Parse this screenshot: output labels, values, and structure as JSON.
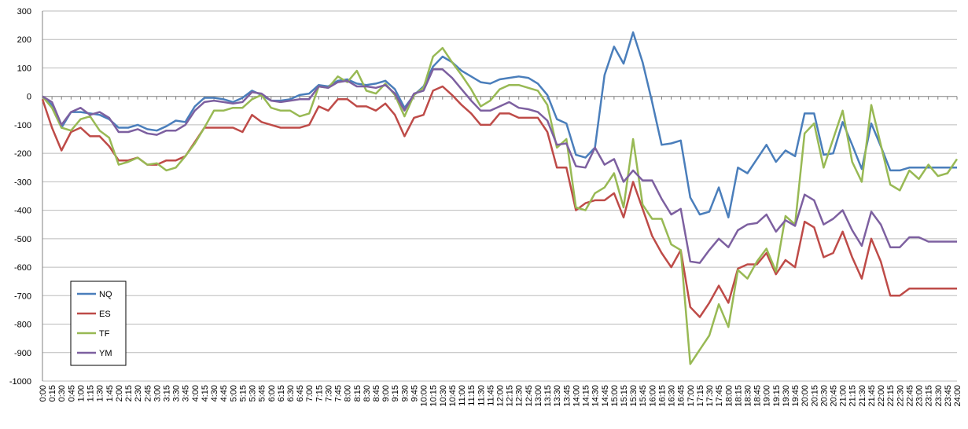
{
  "chart_data": {
    "type": "line",
    "categories": [
      "0:00",
      "0:15",
      "0:30",
      "0:45",
      "1:00",
      "1:15",
      "1:30",
      "1:45",
      "2:00",
      "2:15",
      "2:30",
      "2:45",
      "3:00",
      "3:15",
      "3:30",
      "3:45",
      "4:00",
      "4:15",
      "4:30",
      "4:45",
      "5:00",
      "5:15",
      "5:30",
      "5:45",
      "6:00",
      "6:15",
      "6:30",
      "6:45",
      "7:00",
      "7:15",
      "7:30",
      "7:45",
      "8:00",
      "8:15",
      "8:30",
      "8:45",
      "9:00",
      "9:15",
      "9:30",
      "9:45",
      "10:00",
      "10:15",
      "10:30",
      "10:45",
      "11:00",
      "11:15",
      "11:30",
      "11:45",
      "12:00",
      "12:15",
      "12:30",
      "12:45",
      "13:00",
      "13:15",
      "13:30",
      "13:45",
      "14:00",
      "14:15",
      "14:30",
      "14:45",
      "15:00",
      "15:15",
      "15:30",
      "15:45",
      "16:00",
      "16:15",
      "16:30",
      "16:45",
      "17:00",
      "17:15",
      "17:30",
      "17:45",
      "18:00",
      "18:15",
      "18:30",
      "18:45",
      "19:00",
      "19:15",
      "19:30",
      "19:45",
      "20:00",
      "20:15",
      "20:30",
      "20:45",
      "21:00",
      "21:15",
      "21:30",
      "21:45",
      "22:00",
      "22:15",
      "22:30",
      "22:45",
      "23:00",
      "23:15",
      "23:30",
      "23:45",
      "24:00"
    ],
    "series": [
      {
        "name": "NQ",
        "color": "#4a7ebb",
        "values": [
          0,
          -30,
          -110,
          -55,
          -55,
          -60,
          -65,
          -80,
          -110,
          -110,
          -100,
          -115,
          -120,
          -105,
          -85,
          -90,
          -35,
          -5,
          -5,
          -10,
          -20,
          -5,
          20,
          5,
          -15,
          -15,
          -10,
          5,
          10,
          40,
          35,
          55,
          60,
          45,
          40,
          45,
          55,
          25,
          -40,
          5,
          35,
          105,
          140,
          120,
          90,
          70,
          50,
          45,
          60,
          65,
          70,
          65,
          45,
          5,
          -80,
          -95,
          -205,
          -215,
          -180,
          75,
          175,
          115,
          225,
          120,
          -20,
          -170,
          -165,
          -155,
          -355,
          -415,
          -405,
          -320,
          -425,
          -250,
          -270,
          -220,
          -170,
          -230,
          -190,
          -210,
          -60,
          -60,
          -205,
          -200,
          -90,
          -170,
          -255,
          -95,
          -175,
          -260,
          -260,
          -250,
          -250,
          -250,
          -250,
          -250,
          -250
        ]
      },
      {
        "name": "ES",
        "color": "#be4b48",
        "values": [
          -10,
          -110,
          -190,
          -125,
          -110,
          -140,
          -140,
          -175,
          -225,
          -225,
          -215,
          -240,
          -240,
          -225,
          -225,
          -210,
          -160,
          -110,
          -110,
          -110,
          -110,
          -125,
          -65,
          -90,
          -100,
          -110,
          -110,
          -110,
          -100,
          -35,
          -50,
          -10,
          -10,
          -35,
          -35,
          -50,
          -25,
          -65,
          -140,
          -75,
          -65,
          20,
          35,
          5,
          -30,
          -60,
          -100,
          -100,
          -60,
          -60,
          -75,
          -75,
          -75,
          -125,
          -250,
          -250,
          -400,
          -375,
          -365,
          -365,
          -340,
          -425,
          -300,
          -395,
          -490,
          -550,
          -600,
          -540,
          -740,
          -775,
          -725,
          -665,
          -725,
          -605,
          -590,
          -590,
          -550,
          -625,
          -575,
          -600,
          -440,
          -460,
          -565,
          -550,
          -475,
          -565,
          -640,
          -500,
          -580,
          -700,
          -700,
          -675,
          -675,
          -675,
          -675,
          -675,
          -675
        ]
      },
      {
        "name": "TF",
        "color": "#98b954",
        "values": [
          0,
          -40,
          -110,
          -120,
          -80,
          -70,
          -120,
          -145,
          -240,
          -230,
          -215,
          -240,
          -235,
          -260,
          -250,
          -210,
          -165,
          -110,
          -50,
          -50,
          -40,
          -40,
          -10,
          5,
          -40,
          -50,
          -50,
          -70,
          -60,
          35,
          30,
          70,
          50,
          90,
          20,
          10,
          45,
          5,
          -70,
          5,
          30,
          140,
          170,
          120,
          75,
          25,
          -35,
          -15,
          25,
          40,
          40,
          30,
          20,
          -30,
          -180,
          -150,
          -390,
          -400,
          -340,
          -320,
          -270,
          -390,
          -150,
          -380,
          -430,
          -430,
          -520,
          -540,
          -940,
          -890,
          -840,
          -730,
          -810,
          -610,
          -640,
          -580,
          -535,
          -615,
          -420,
          -450,
          -130,
          -95,
          -250,
          -150,
          -50,
          -230,
          -300,
          -30,
          -170,
          -310,
          -330,
          -260,
          -290,
          -240,
          -280,
          -270,
          -220
        ]
      },
      {
        "name": "YM",
        "color": "#7d60a0",
        "values": [
          0,
          -20,
          -100,
          -55,
          -40,
          -65,
          -55,
          -75,
          -125,
          -125,
          -115,
          -130,
          -135,
          -120,
          -120,
          -100,
          -50,
          -20,
          -15,
          -20,
          -25,
          -20,
          15,
          10,
          -15,
          -20,
          -15,
          -10,
          -10,
          35,
          30,
          50,
          55,
          35,
          35,
          30,
          40,
          10,
          -50,
          10,
          20,
          95,
          95,
          65,
          25,
          -15,
          -50,
          -50,
          -35,
          -20,
          -40,
          -45,
          -55,
          -85,
          -170,
          -165,
          -245,
          -250,
          -180,
          -240,
          -220,
          -300,
          -260,
          -295,
          -295,
          -360,
          -415,
          -395,
          -580,
          -585,
          -540,
          -500,
          -530,
          -470,
          -450,
          -445,
          -415,
          -475,
          -435,
          -455,
          -345,
          -365,
          -450,
          -430,
          -400,
          -470,
          -525,
          -405,
          -450,
          -530,
          -530,
          -495,
          -495,
          -510,
          -510,
          -510,
          -510
        ]
      }
    ],
    "ylim": [
      -1000,
      300
    ],
    "yticks": [
      -1000,
      -900,
      -800,
      -700,
      -600,
      -500,
      -400,
      -300,
      -200,
      -100,
      0,
      100,
      200,
      300
    ],
    "grid": true,
    "legend": "lower left"
  }
}
